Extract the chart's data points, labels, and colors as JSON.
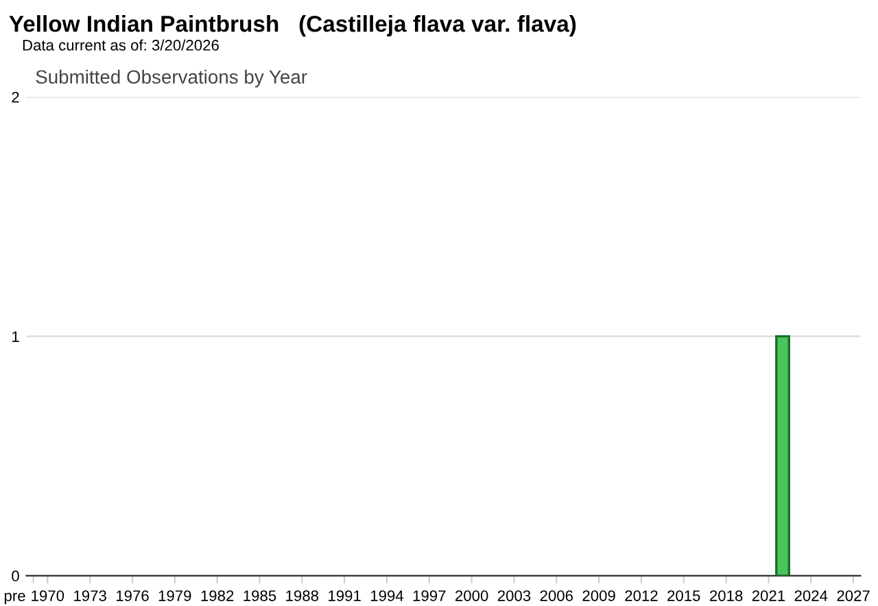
{
  "chart_data": {
    "type": "bar",
    "title": "Yellow Indian Paintbrush   (Castilleja flava var. flava)",
    "subtitle": "Data current as of: 3/20/2026",
    "annotations": [
      "Submitted Observations by Year"
    ],
    "categories": [
      "pre",
      "1970",
      null,
      null,
      "1973",
      null,
      null,
      "1976",
      null,
      null,
      "1979",
      null,
      null,
      "1982",
      null,
      null,
      "1985",
      null,
      null,
      "1988",
      null,
      null,
      "1991",
      null,
      null,
      "1994",
      null,
      null,
      "1997",
      null,
      null,
      "2000",
      null,
      null,
      "2003",
      null,
      null,
      "2006",
      null,
      null,
      "2009",
      null,
      null,
      "2012",
      null,
      null,
      "2015",
      null,
      null,
      "2018",
      null,
      null,
      "2021",
      null,
      null,
      "2024",
      null,
      null,
      "2027"
    ],
    "values": [
      0,
      0,
      0,
      0,
      0,
      0,
      0,
      0,
      0,
      0,
      0,
      0,
      0,
      0,
      0,
      0,
      0,
      0,
      0,
      0,
      0,
      0,
      0,
      0,
      0,
      0,
      0,
      0,
      0,
      0,
      0,
      0,
      0,
      0,
      0,
      0,
      0,
      0,
      0,
      0,
      0,
      0,
      0,
      0,
      0,
      0,
      0,
      0,
      0,
      0,
      0,
      0,
      0,
      1,
      0,
      0,
      0,
      0,
      0
    ],
    "color": "#4cc45c",
    "ylim": [
      0,
      2
    ],
    "yticks": [
      0,
      1,
      2
    ],
    "grid": "y",
    "legend": false
  }
}
